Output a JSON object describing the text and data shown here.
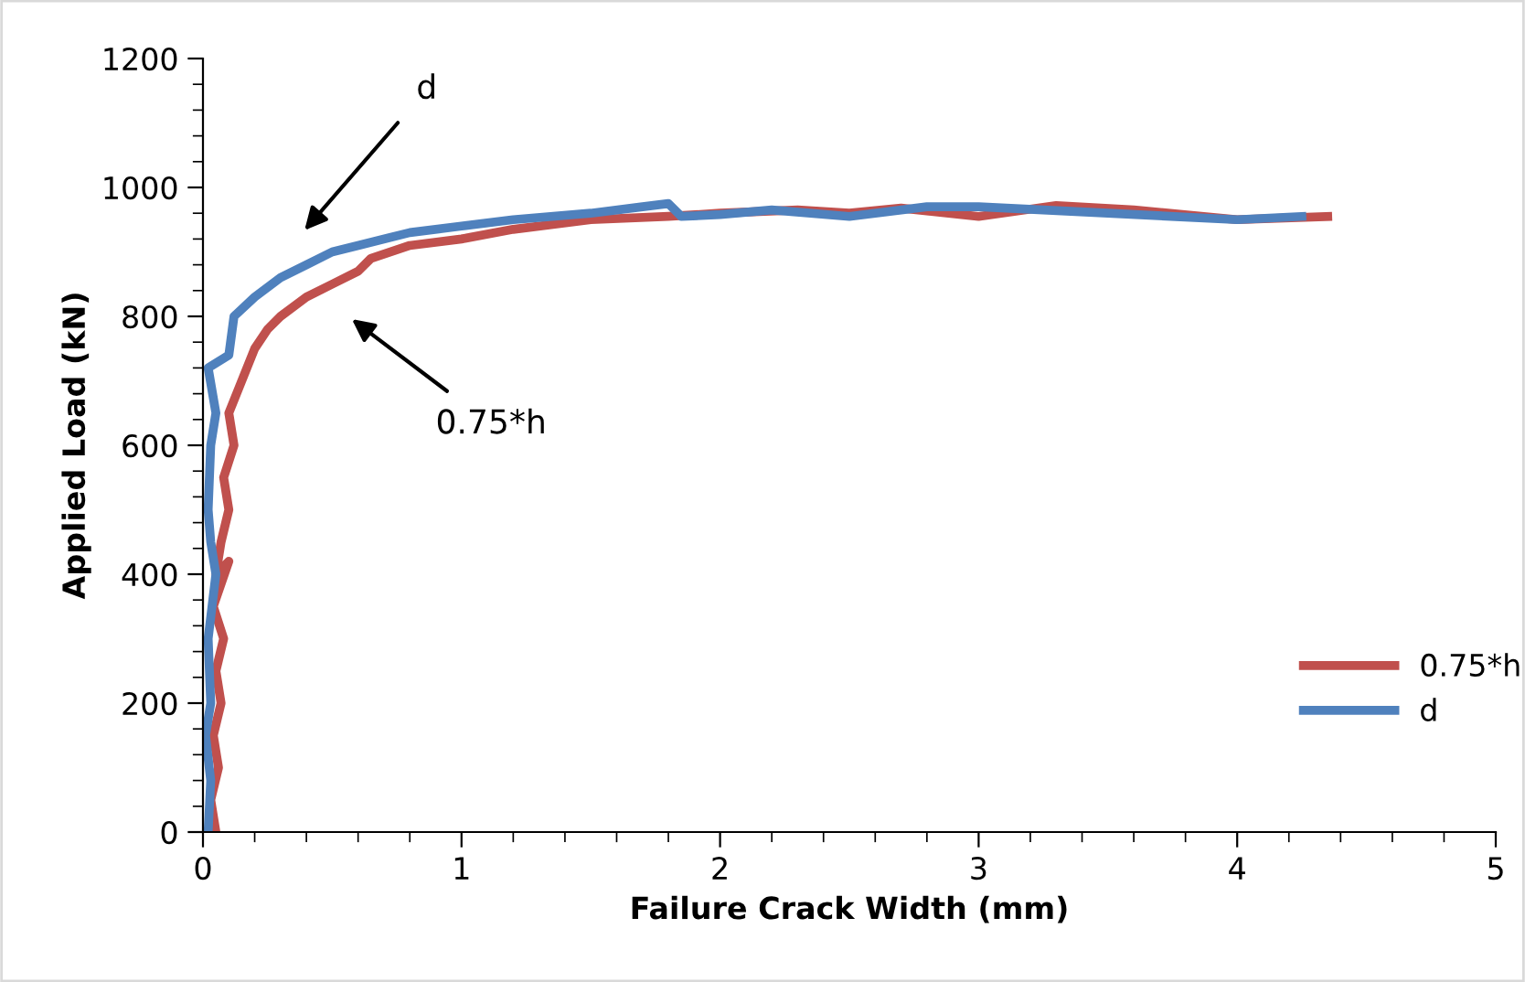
{
  "chart_data": {
    "type": "line",
    "xlabel": "Failure Crack Width (mm)",
    "ylabel": "Applied Load (kN)",
    "xlim": [
      0,
      5
    ],
    "ylim": [
      0,
      1200
    ],
    "xticks": [
      0,
      1,
      2,
      3,
      4,
      5
    ],
    "yticks": [
      0,
      200,
      400,
      600,
      800,
      1000,
      1200
    ],
    "grid": false,
    "legend": "bottom right",
    "marker": "none",
    "line_style": "solid",
    "series": [
      {
        "name": "0.75*h",
        "color": "#c0504d",
        "x": [
          0.05,
          0.03,
          0.06,
          0.04,
          0.07,
          0.05,
          0.08,
          0.04,
          0.1,
          0.05,
          0.07,
          0.1,
          0.08,
          0.12,
          0.1,
          0.15,
          0.2,
          0.25,
          0.3,
          0.4,
          0.5,
          0.6,
          0.65,
          0.8,
          1.0,
          1.2,
          1.5,
          1.8,
          2.0,
          2.3,
          2.5,
          2.7,
          3.0,
          3.3,
          3.6,
          4.0,
          4.35
        ],
        "values": [
          0,
          50,
          100,
          150,
          200,
          250,
          300,
          350,
          420,
          400,
          450,
          500,
          550,
          600,
          650,
          700,
          750,
          780,
          800,
          830,
          850,
          870,
          890,
          910,
          920,
          935,
          950,
          955,
          960,
          965,
          960,
          968,
          955,
          972,
          965,
          950,
          955
        ]
      },
      {
        "name": "d",
        "color": "#4f81bd",
        "x": [
          0.02,
          0.03,
          0.01,
          0.03,
          0.02,
          0.05,
          0.03,
          0.02,
          0.03,
          0.05,
          0.02,
          0.1,
          0.12,
          0.2,
          0.3,
          0.4,
          0.5,
          0.6,
          0.8,
          1.0,
          1.2,
          1.5,
          1.7,
          1.8,
          1.85,
          2.0,
          2.2,
          2.5,
          2.8,
          3.0,
          3.5,
          4.0,
          4.25
        ],
        "values": [
          0,
          80,
          150,
          200,
          300,
          400,
          450,
          500,
          600,
          650,
          720,
          740,
          800,
          830,
          860,
          880,
          900,
          910,
          930,
          940,
          950,
          960,
          970,
          975,
          955,
          958,
          965,
          955,
          970,
          970,
          960,
          950,
          955
        ]
      }
    ],
    "annotations": [
      "d",
      "0.75*h"
    ]
  }
}
